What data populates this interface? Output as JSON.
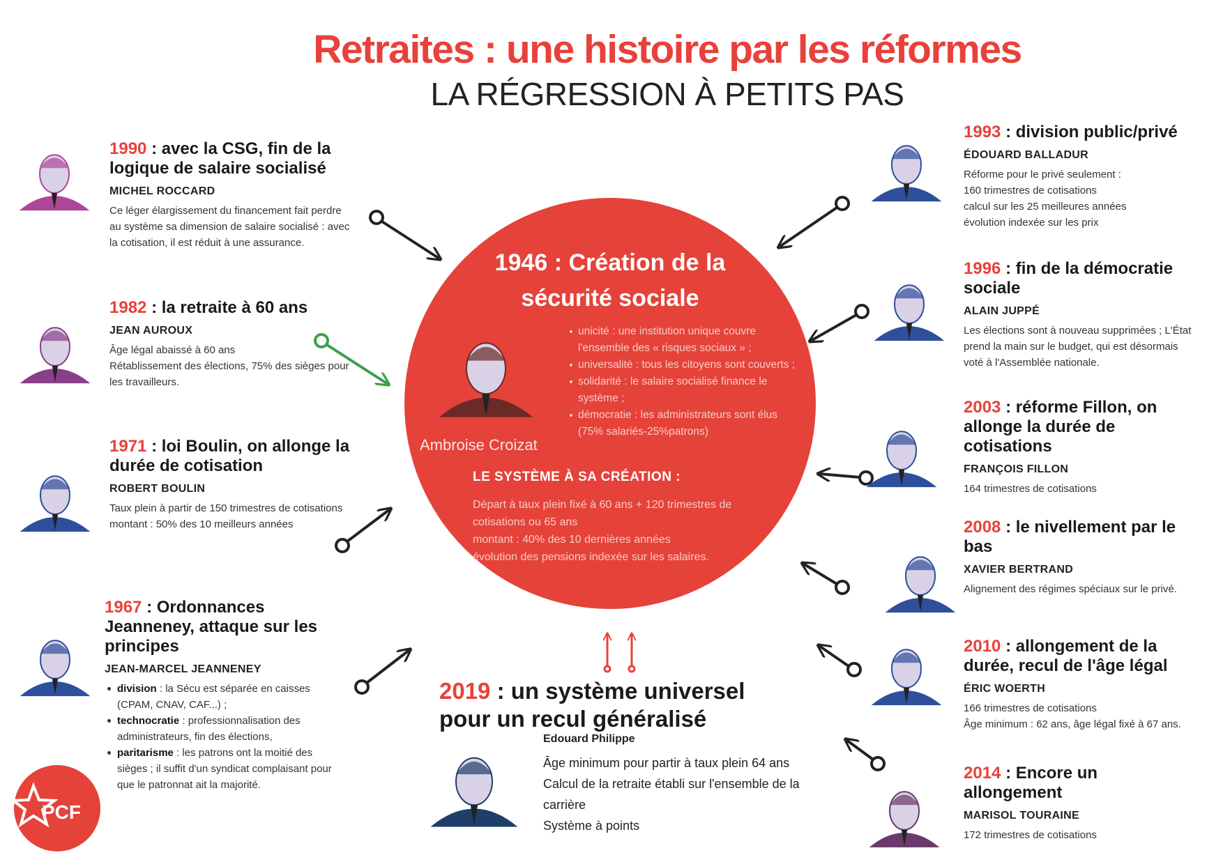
{
  "header": {
    "title": "Retraites : une histoire par les réformes",
    "subtitle": "LA RÉGRESSION À PETITS PAS"
  },
  "center": {
    "title": "1946 : Création de la sécurité sociale",
    "portrait_name": "Ambroise Croizat",
    "principles": [
      "unicité : une institution unique couvre l'ensemble des « risques sociaux » ;",
      "universalité : tous les citoyens sont couverts ;",
      "solidarité : le salaire socialisé finance le système ;",
      "démocratie : les administrateurs sont élus (75% salariés-25%patrons)"
    ],
    "system_heading": "LE SYSTÈME À SA CRÉATION :",
    "system_lines": [
      "Départ à taux plein fixé à 60 ans + 120 trimestres de cotisations ou 65 ans",
      "montant : 40% des 10 dernières années",
      "évolution des pensions indexée sur les salaires."
    ]
  },
  "reforms": [
    {
      "year": "1990",
      "title": ": avec la CSG, fin de la logique de salaire socialisé",
      "person": "MICHEL ROCCARD",
      "lines": [
        "Ce léger élargissement du financement fait perdre au système sa dimension de salaire socialisé : avec la cotisation, il est réduit à une assurance."
      ]
    },
    {
      "year": "1982",
      "title": ": la retraite à 60 ans",
      "person": "JEAN AUROUX",
      "lines": [
        "Âge légal abaissé à 60 ans",
        "Rétablissement des élections, 75% des sièges pour les travailleurs."
      ]
    },
    {
      "year": "1971",
      "title": ": loi Boulin, on allonge la durée de cotisation",
      "person": "ROBERT BOULIN",
      "lines": [
        "Taux plein à partir de 150 trimestres de cotisations",
        "montant : 50% des 10 meilleurs années"
      ]
    },
    {
      "year": "1967",
      "title": ": Ordonnances Jeanneney, attaque sur les principes",
      "person": "JEAN-MARCEL JEANNENEY",
      "items": [
        {
          "term": "division",
          "text": " : la Sécu est séparée en caisses (CPAM, CNAV, CAF...) ;"
        },
        {
          "term": "technocratie",
          "text": " : professionnalisation des administrateurs, fin des élections,"
        },
        {
          "term": "paritarisme",
          "text": " : les patrons ont la moitié des sièges ; il suffit d'un syndicat complaisant pour que le patronnat ait la majorité."
        }
      ]
    },
    {
      "year": "1993",
      "title": ": division public/privé",
      "person": "ÉDOUARD BALLADUR",
      "lines": [
        "Réforme pour le privé seulement :",
        "160 trimestres de cotisations",
        "calcul sur les 25 meilleures années",
        "évolution indexée sur les prix"
      ]
    },
    {
      "year": "1996",
      "title": ": fin de la démocratie sociale",
      "person": "ALAIN JUPPÉ",
      "lines": [
        "Les élections sont à nouveau supprimées ; L'État prend la main sur le budget, qui est désormais voté à l'Assemblée nationale."
      ]
    },
    {
      "year": "2003",
      "title": ": réforme Fillon, on allonge la durée de cotisations",
      "person": "FRANÇOIS FILLON",
      "lines": [
        "164 trimestres de cotisations"
      ]
    },
    {
      "year": "2008",
      "title": ": le nivellement par le bas",
      "person": "XAVIER BERTRAND",
      "lines": [
        "Alignement des régimes spéciaux sur le privé."
      ]
    },
    {
      "year": "2010",
      "title": ": allongement de la durée, recul de l'âge légal",
      "person": "ÉRIC WOERTH",
      "lines": [
        "166 trimestres de cotisations",
        "Âge minimum : 62 ans, âge légal fixé à 67 ans."
      ]
    },
    {
      "year": "2014",
      "title": ": Encore un allongement",
      "person": "MARISOL TOURAINE",
      "lines": [
        "172 trimestres de cotisations"
      ]
    }
  ],
  "future": {
    "year": "2019",
    "title": ": un système universel pour un recul généralisé",
    "person": "Edouard Philippe",
    "lines": [
      "Âge minimum pour partir à taux plein 64 ans",
      "Calcul de la retraite établi sur l'ensemble de la carrière",
      "Système à points"
    ]
  },
  "logo": {
    "text": "PCF"
  }
}
